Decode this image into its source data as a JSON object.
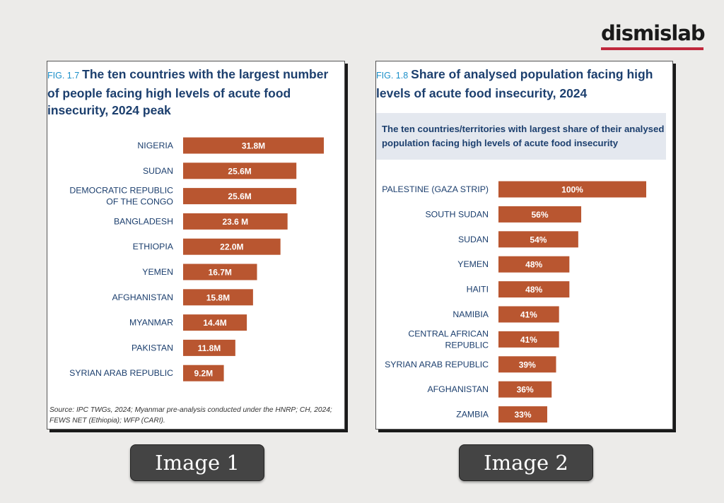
{
  "logo": {
    "text": "dismislab"
  },
  "colors": {
    "bar": "#b95630",
    "label": "#1c3f6e",
    "fig_number": "#1b8fc9",
    "logo_bar": "#c0283c"
  },
  "figure1": {
    "number": "FIG. 1.7",
    "title": "The ten countries with the largest number of people facing high levels of acute food insecurity, 2024 peak",
    "source": "Source: IPC TWGs, 2024; Myanmar pre-analysis conducted under the HNRP; CH, 2024; FEWS NET (Ethiopia); WFP (CARI)."
  },
  "figure2": {
    "number": "FIG. 1.8",
    "title": "Share of analysed population facing high levels of acute food insecurity, 2024",
    "subtitle": "The ten countries/territories with largest share of their analysed population facing high levels of acute food insecurity"
  },
  "buttons": {
    "image1": "Image 1",
    "image2": "Image 2"
  },
  "chart_data": [
    {
      "type": "bar",
      "orientation": "horizontal",
      "title": "The ten countries with the largest number of people facing high levels of acute food insecurity, 2024 peak",
      "categories": [
        [
          "NIGERIA"
        ],
        [
          "SUDAN"
        ],
        [
          "DEMOCRATIC REPUBLIC",
          "OF THE CONGO"
        ],
        [
          "BANGLADESH"
        ],
        [
          "ETHIOPIA"
        ],
        [
          "YEMEN"
        ],
        [
          "AFGHANISTAN"
        ],
        [
          "MYANMAR"
        ],
        [
          "PAKISTAN"
        ],
        [
          "SYRIAN ARAB REPUBLIC"
        ]
      ],
      "values": [
        31.8,
        25.6,
        25.6,
        23.6,
        22.0,
        16.7,
        15.8,
        14.4,
        11.8,
        9.2
      ],
      "value_labels": [
        "31.8M",
        "25.6M",
        "25.6M",
        "23.6 M",
        "22.0M",
        "16.7M",
        "15.8M",
        "14.4M",
        "11.8M",
        "9.2M"
      ],
      "unit": "million people"
    },
    {
      "type": "bar",
      "orientation": "horizontal",
      "title": "Share of analysed population facing high levels of acute food insecurity, 2024",
      "categories": [
        [
          "PALESTINE (GAZA STRIP)"
        ],
        [
          "SOUTH SUDAN"
        ],
        [
          "SUDAN"
        ],
        [
          "YEMEN"
        ],
        [
          "HAITI"
        ],
        [
          "NAMIBIA"
        ],
        [
          "CENTRAL AFRICAN",
          "REPUBLIC"
        ],
        [
          "SYRIAN ARAB REPUBLIC"
        ],
        [
          "AFGHANISTAN"
        ],
        [
          "ZAMBIA"
        ]
      ],
      "values": [
        100,
        56,
        54,
        48,
        48,
        41,
        41,
        39,
        36,
        33
      ],
      "value_labels": [
        "100%",
        "56%",
        "54%",
        "48%",
        "48%",
        "41%",
        "41%",
        "39%",
        "36%",
        "33%"
      ],
      "unit": "percent"
    }
  ]
}
